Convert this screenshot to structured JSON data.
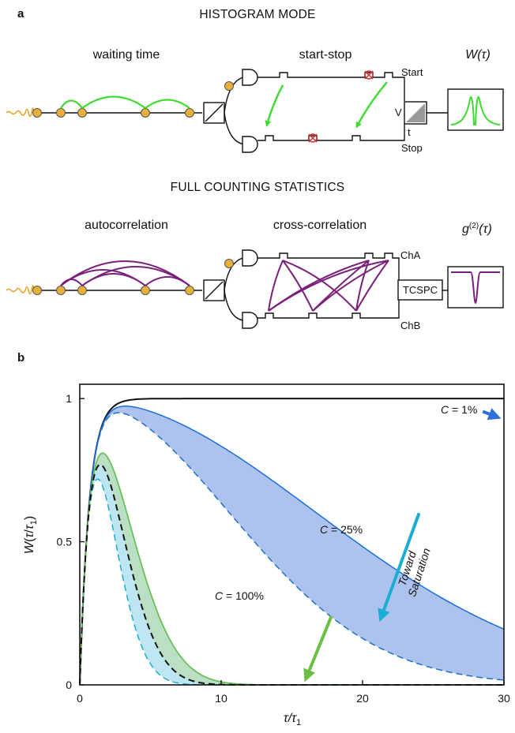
{
  "panel_a": {
    "label": "a",
    "histogram_mode": {
      "title": "HISTOGRAM MODE",
      "waiting_time": "waiting time",
      "start_stop": "start-stop",
      "start": "Start",
      "stop": "Stop",
      "tac_v": "V",
      "tac_t": "t",
      "output_label": "W(τ)"
    },
    "full_counting": {
      "title": "FULL COUNTING STATISTICS",
      "autocorrelation": "autocorrelation",
      "cross_correlation": "cross-correlation",
      "cha": "ChA",
      "chb": "ChB",
      "tcspc": "TCSPC",
      "output_label": "g(2)(τ)"
    },
    "colors": {
      "green": "#3ddc2f",
      "purple": "#7a1f7a",
      "photon": "#e8b03a",
      "wave": "#e8a020"
    }
  },
  "chart_data": {
    "panel_label": "b",
    "type": "line",
    "xlabel": "τ/τ1",
    "ylabel": "W(τ/τ1)",
    "xlim": [
      0,
      30
    ],
    "ylim": [
      0,
      1.05
    ],
    "xticks": [
      "0",
      "10",
      "20",
      "30"
    ],
    "yticks": [
      "0",
      "0.5",
      "1"
    ],
    "curves": [
      {
        "id": "black-solid",
        "color": "#111111",
        "style": "solid",
        "C": 0.0,
        "factor": 1.0
      },
      {
        "id": "blue-solid",
        "color": "#1a6fd8",
        "style": "solid",
        "C": 0.01,
        "factor": 1.0
      },
      {
        "id": "blue-dashed",
        "color": "#1a6fd8",
        "style": "dashed",
        "C": 0.01,
        "factor": 2.5
      },
      {
        "id": "cyan-solid",
        "color": "#1aaed2",
        "style": "solid",
        "C": 0.25,
        "factor": 1.0
      },
      {
        "id": "cyan-dashed",
        "color": "#1aaed2",
        "style": "dashed",
        "C": 0.25,
        "factor": 2.3
      },
      {
        "id": "green-solid",
        "color": "#6bbf45",
        "style": "solid",
        "C": 1.0,
        "factor": 0.25
      },
      {
        "id": "green-dashed",
        "color": "#6bbf45",
        "style": "dashed",
        "C": 1.0,
        "factor": 0.37
      },
      {
        "id": "black-dashed",
        "color": "#111111",
        "style": "dashed",
        "C": 1.0,
        "factor": 0.37
      }
    ],
    "bands": [
      {
        "upper": "blue-solid",
        "lower": "blue-dashed",
        "color": "#4a78d8",
        "opacity": 0.45
      },
      {
        "upper": "cyan-solid",
        "lower": "cyan-dashed",
        "color": "#7ccde6",
        "opacity": 0.5
      },
      {
        "upper": "green-solid",
        "lower": "green-dashed",
        "color": "#b8d89a",
        "opacity": 0.55
      }
    ],
    "annotations": {
      "c1": "C = 1%",
      "c25": "C = 25%",
      "c100": "C = 100%",
      "toward": "Toward",
      "saturation": "Saturation"
    },
    "arrows": [
      {
        "color": "#2f6fdc",
        "from": [
          28.5,
          0.955
        ],
        "to": [
          29.8,
          0.93
        ]
      },
      {
        "color": "#1aaed2",
        "from": [
          24.0,
          0.6
        ],
        "to": [
          21.2,
          0.22
        ]
      },
      {
        "color": "#6bbf45",
        "from": [
          17.8,
          0.24
        ],
        "to": [
          15.9,
          0.01
        ]
      }
    ]
  }
}
